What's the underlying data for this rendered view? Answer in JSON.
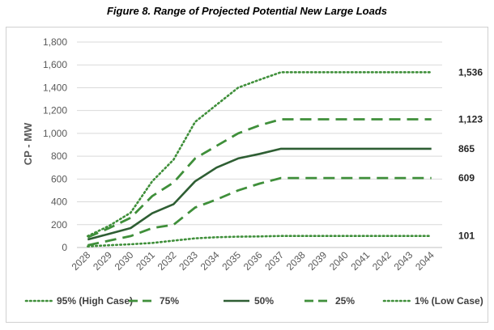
{
  "title": "Figure 8. Range of Projected Potential New Large Loads",
  "chart_data": {
    "type": "line",
    "title": "Figure 8. Range of Projected Potential New Large Loads",
    "xlabel": "",
    "ylabel": "CP - MW",
    "ylim": [
      0,
      1800
    ],
    "yticks": [
      0,
      200,
      400,
      600,
      800,
      1000,
      1200,
      1400,
      1600,
      1800
    ],
    "ytick_labels": [
      "0",
      "200",
      "400",
      "600",
      "800",
      "1,000",
      "1,200",
      "1,400",
      "1,600",
      "1,800"
    ],
    "grid": true,
    "legend_position": "bottom",
    "categories": [
      "2028",
      "2029",
      "2030",
      "2031",
      "2032",
      "2033",
      "2034",
      "2035",
      "2036",
      "2037",
      "2038",
      "2039",
      "2040",
      "2041",
      "2042",
      "2043",
      "2044"
    ],
    "series": [
      {
        "name": "95% (High Case)",
        "style": "dotted",
        "color": "#3f8f3a",
        "values": [
          100,
          190,
          305,
          580,
          770,
          1100,
          1250,
          1400,
          1470,
          1536,
          1536,
          1536,
          1536,
          1536,
          1536,
          1536,
          1536
        ],
        "end_label": "1,536"
      },
      {
        "name": "75%",
        "style": "dashed",
        "color": "#3f8f3a",
        "values": [
          90,
          170,
          260,
          450,
          570,
          780,
          890,
          1000,
          1070,
          1123,
          1123,
          1123,
          1123,
          1123,
          1123,
          1123,
          1123
        ],
        "end_label": "1,123"
      },
      {
        "name": "50%",
        "style": "solid",
        "color": "#2e5e33",
        "values": [
          70,
          120,
          170,
          300,
          380,
          580,
          700,
          780,
          820,
          865,
          865,
          865,
          865,
          865,
          865,
          865,
          865
        ],
        "end_label": "865"
      },
      {
        "name": "25%",
        "style": "dashed",
        "color": "#3f8f3a",
        "values": [
          20,
          60,
          100,
          170,
          200,
          350,
          420,
          500,
          560,
          609,
          609,
          609,
          609,
          609,
          609,
          609,
          609
        ],
        "end_label": "609"
      },
      {
        "name": "1% (Low Case)",
        "style": "dotted",
        "color": "#3f8f3a",
        "values": [
          10,
          20,
          28,
          40,
          60,
          80,
          90,
          95,
          97,
          101,
          101,
          101,
          101,
          101,
          101,
          101,
          101
        ],
        "end_label": "101"
      }
    ]
  }
}
